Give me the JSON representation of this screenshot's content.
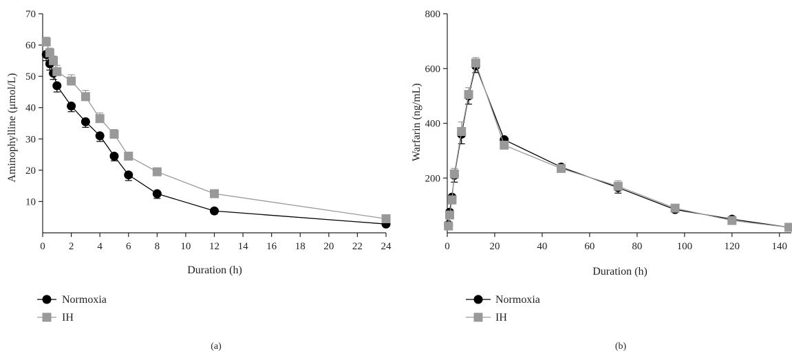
{
  "chart_data": [
    {
      "type": "line",
      "panel_label": "(a)",
      "xlabel": "Duration (h)",
      "ylabel": "Aminophylline (μmol/L)",
      "xlim": [
        0,
        24
      ],
      "ylim": [
        0,
        70
      ],
      "xticks": [
        0,
        2,
        4,
        6,
        8,
        10,
        12,
        14,
        16,
        18,
        20,
        22,
        24
      ],
      "yticks": [
        10,
        20,
        30,
        40,
        50,
        60,
        70
      ],
      "x_tick_labels": [
        "0",
        "2",
        "4",
        "6",
        "8",
        "10",
        "12",
        "14",
        "16",
        "18",
        "20",
        "22",
        "24"
      ],
      "y_tick_labels": [
        "10",
        "20",
        "30",
        "40",
        "50",
        "60",
        "70"
      ],
      "legend_position": "bottom-left",
      "grid": false,
      "series": [
        {
          "name": "Normoxia",
          "color": "#000000",
          "marker": "circle",
          "x": [
            0.25,
            0.5,
            0.75,
            1,
            2,
            3,
            4,
            5,
            6,
            8,
            12,
            24
          ],
          "y": [
            57,
            54,
            51,
            47,
            40.5,
            35.5,
            31,
            24.5,
            18.5,
            12.5,
            7,
            2.8
          ],
          "err": [
            2,
            2,
            2,
            2,
            1.8,
            1.8,
            1.8,
            1.5,
            1.8,
            1.5,
            0.8,
            0.3
          ]
        },
        {
          "name": "IH",
          "color": "#999999",
          "marker": "square",
          "x": [
            0.25,
            0.5,
            0.75,
            1,
            2,
            3,
            4,
            5,
            6,
            8,
            12,
            24
          ],
          "y": [
            61,
            57.5,
            55,
            51.5,
            48.5,
            43.5,
            36.5,
            31.5,
            24.5,
            19.5,
            12.5,
            4.5
          ],
          "err": [
            1.5,
            1.5,
            1.5,
            2,
            2,
            2,
            1.8,
            1.5,
            1.2,
            0.8,
            1,
            0.3
          ]
        }
      ]
    },
    {
      "type": "line",
      "panel_label": "(b)",
      "xlabel": "Duration (h)",
      "ylabel": "Warfarin (ng/mL)",
      "xlim": [
        0,
        145
      ],
      "ylim": [
        0,
        800
      ],
      "xticks": [
        0,
        20,
        40,
        60,
        80,
        100,
        120,
        140
      ],
      "yticks": [
        200,
        400,
        600,
        800
      ],
      "x_tick_labels": [
        "0",
        "20",
        "40",
        "60",
        "80",
        "100",
        "120",
        "140"
      ],
      "y_tick_labels": [
        "200",
        "400",
        "600",
        "800"
      ],
      "legend_position": "bottom-left",
      "grid": false,
      "series": [
        {
          "name": "Normoxia",
          "color": "#000000",
          "marker": "circle",
          "x": [
            0.5,
            1,
            2,
            3,
            6,
            9,
            12,
            24,
            48,
            72,
            96,
            120,
            144
          ],
          "y": [
            30,
            75,
            130,
            210,
            360,
            500,
            610,
            340,
            240,
            165,
            85,
            50,
            20
          ],
          "err": [
            10,
            15,
            15,
            25,
            35,
            30,
            25,
            15,
            12,
            20,
            8,
            6,
            3
          ]
        },
        {
          "name": "IH",
          "color": "#999999",
          "marker": "square",
          "x": [
            0.5,
            1,
            2,
            3,
            6,
            9,
            12,
            24,
            48,
            72,
            96,
            120,
            144
          ],
          "y": [
            25,
            65,
            120,
            215,
            370,
            505,
            620,
            320,
            235,
            170,
            90,
            45,
            20
          ],
          "err": [
            8,
            12,
            15,
            20,
            35,
            25,
            20,
            12,
            10,
            20,
            8,
            6,
            3
          ]
        }
      ]
    }
  ]
}
